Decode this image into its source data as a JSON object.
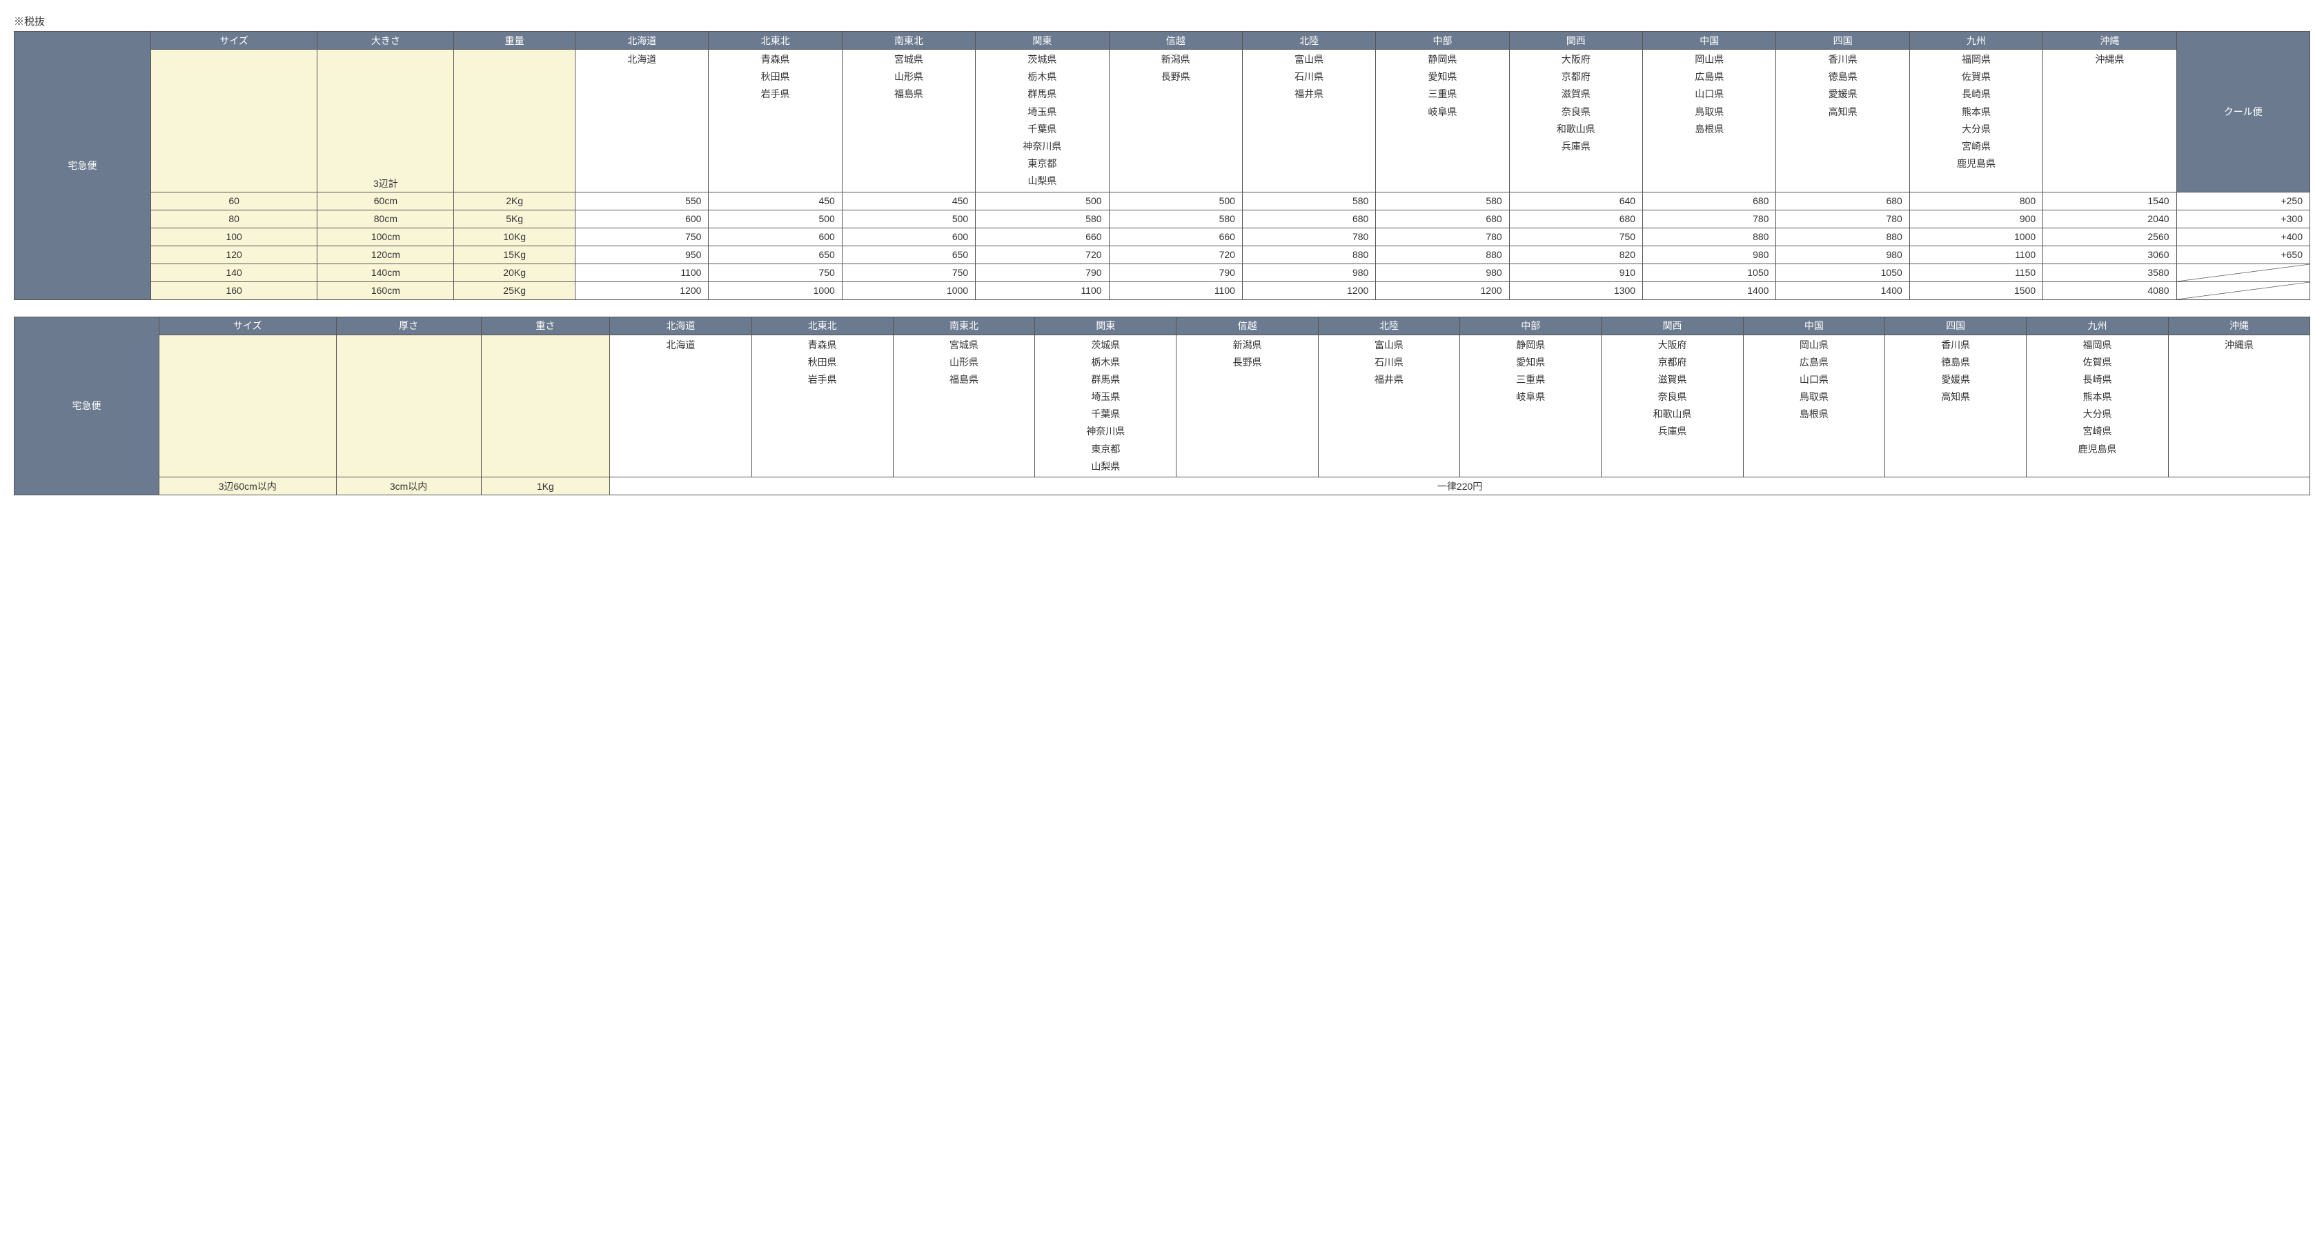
{
  "note": "※税抜",
  "table1": {
    "side_label": "宅急便",
    "cool_label": "クール便",
    "headers": {
      "size": "サイズ",
      "dimension": "大きさ",
      "weight": "重量"
    },
    "dim_note": "3辺計",
    "regions": [
      {
        "name": "北海道",
        "prefs": [
          "北海道"
        ]
      },
      {
        "name": "北東北",
        "prefs": [
          "青森県",
          "秋田県",
          "岩手県"
        ]
      },
      {
        "name": "南東北",
        "prefs": [
          "宮城県",
          "山形県",
          "福島県"
        ]
      },
      {
        "name": "関東",
        "prefs": [
          "茨城県",
          "栃木県",
          "群馬県",
          "埼玉県",
          "千葉県",
          "神奈川県",
          "東京都",
          "山梨県"
        ]
      },
      {
        "name": "信越",
        "prefs": [
          "新潟県",
          "長野県"
        ]
      },
      {
        "name": "北陸",
        "prefs": [
          "富山県",
          "石川県",
          "福井県"
        ]
      },
      {
        "name": "中部",
        "prefs": [
          "静岡県",
          "愛知県",
          "三重県",
          "岐阜県"
        ]
      },
      {
        "name": "関西",
        "prefs": [
          "大阪府",
          "京都府",
          "滋賀県",
          "奈良県",
          "和歌山県",
          "兵庫県"
        ]
      },
      {
        "name": "中国",
        "prefs": [
          "岡山県",
          "広島県",
          "山口県",
          "鳥取県",
          "島根県"
        ]
      },
      {
        "name": "四国",
        "prefs": [
          "香川県",
          "徳島県",
          "愛媛県",
          "高知県"
        ]
      },
      {
        "name": "九州",
        "prefs": [
          "福岡県",
          "佐賀県",
          "長崎県",
          "熊本県",
          "大分県",
          "宮崎県",
          "鹿児島県"
        ]
      },
      {
        "name": "沖縄",
        "prefs": [
          "沖縄県"
        ]
      }
    ],
    "rows": [
      {
        "size": "60",
        "dim": "60cm",
        "wt": "2Kg",
        "prices": [
          "550",
          "450",
          "450",
          "500",
          "500",
          "580",
          "580",
          "640",
          "680",
          "680",
          "800",
          "1540"
        ],
        "cool": "+250"
      },
      {
        "size": "80",
        "dim": "80cm",
        "wt": "5Kg",
        "prices": [
          "600",
          "500",
          "500",
          "580",
          "580",
          "680",
          "680",
          "680",
          "780",
          "780",
          "900",
          "2040"
        ],
        "cool": "+300"
      },
      {
        "size": "100",
        "dim": "100cm",
        "wt": "10Kg",
        "prices": [
          "750",
          "600",
          "600",
          "660",
          "660",
          "780",
          "780",
          "750",
          "880",
          "880",
          "1000",
          "2560"
        ],
        "cool": "+400"
      },
      {
        "size": "120",
        "dim": "120cm",
        "wt": "15Kg",
        "prices": [
          "950",
          "650",
          "650",
          "720",
          "720",
          "880",
          "880",
          "820",
          "980",
          "980",
          "1100",
          "3060"
        ],
        "cool": "+650"
      },
      {
        "size": "140",
        "dim": "140cm",
        "wt": "20Kg",
        "prices": [
          "1100",
          "750",
          "750",
          "790",
          "790",
          "980",
          "980",
          "910",
          "1050",
          "1050",
          "1150",
          "3580"
        ],
        "cool": null
      },
      {
        "size": "160",
        "dim": "160cm",
        "wt": "25Kg",
        "prices": [
          "1200",
          "1000",
          "1000",
          "1100",
          "1100",
          "1200",
          "1200",
          "1300",
          "1400",
          "1400",
          "1500",
          "4080"
        ],
        "cool": null
      }
    ]
  },
  "table2": {
    "side_label": "宅急便",
    "headers": {
      "size": "サイズ",
      "dimension": "厚さ",
      "weight": "重さ"
    },
    "regions_same_as_table1": true,
    "row": {
      "size": "3辺60cm以内",
      "dim": "3cm以内",
      "wt": "1Kg",
      "flat": "一律220円"
    }
  },
  "colors": {
    "header_bg": "#6b7a8f",
    "header_fg": "#ffffff",
    "yellow_bg": "#f9f5d7",
    "border": "#555555",
    "text": "#333333"
  }
}
